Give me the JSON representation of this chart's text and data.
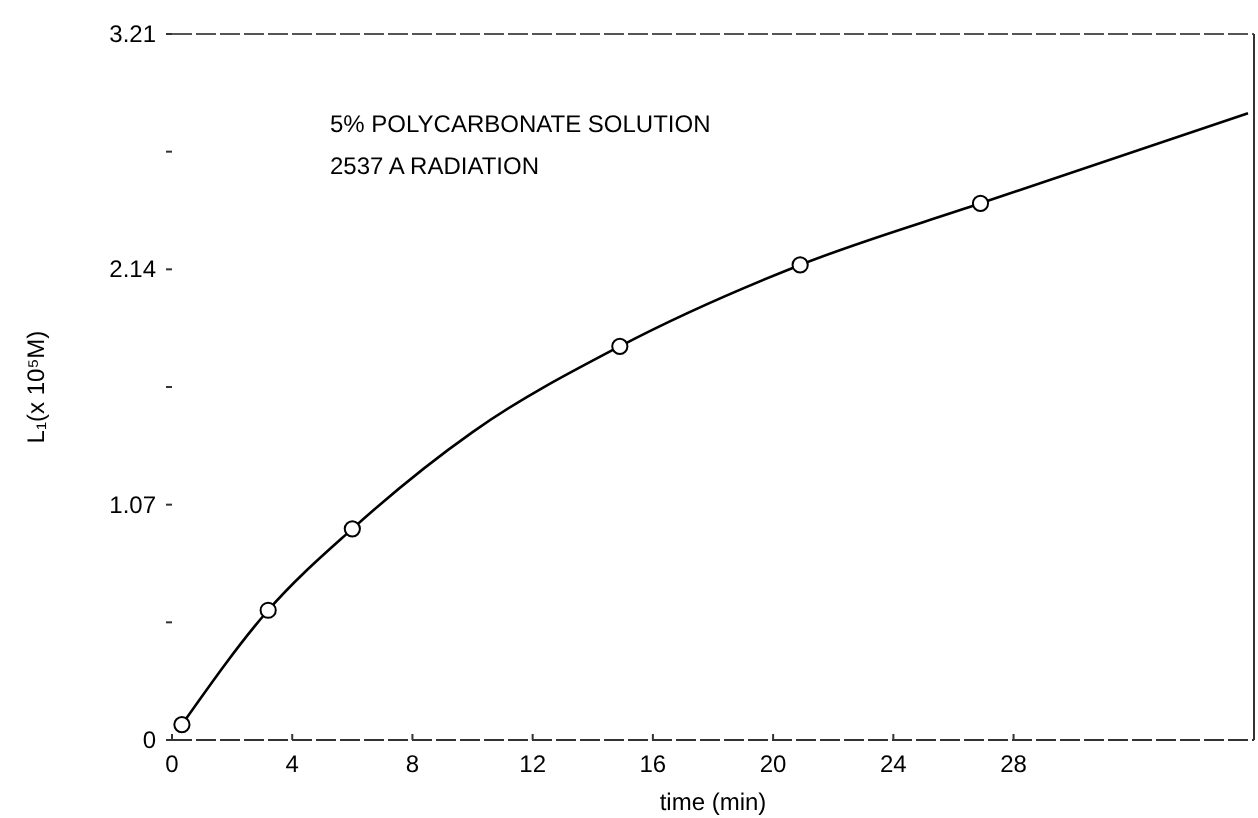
{
  "chart_data": {
    "type": "scatter",
    "xlabel": "time (min)",
    "ylabel": "L₁(x 10⁵M)",
    "annotations": [
      "5% POLYCARBONATE SOLUTION",
      "2537 A RADIATION"
    ],
    "series": [
      {
        "color": "#000000",
        "marker": "circle",
        "x": [
          0.33,
          3.2,
          6.0,
          14.9,
          20.9,
          26.9
        ],
        "values": [
          0.07,
          0.59,
          0.96,
          1.79,
          2.16,
          2.44
        ]
      },
      {
        "type": "line",
        "color": "#000000",
        "marker": "none",
        "x": [
          0.33,
          3.2,
          6.0,
          10,
          14.9,
          20.9,
          26.9,
          35.8
        ],
        "values": [
          0.07,
          0.59,
          0.96,
          1.4,
          1.79,
          2.16,
          2.44,
          2.85
        ]
      }
    ],
    "xlim": [
      0,
      36
    ],
    "xticks": [
      0,
      4,
      8,
      12,
      16,
      20,
      24,
      28
    ],
    "ylim": [
      0,
      3.21
    ],
    "yticks": [
      0,
      {
        "value": 0.535,
        "label": null
      },
      1.07,
      {
        "value": 1.605,
        "label": null
      },
      2.14,
      {
        "value": 2.675,
        "label": null
      },
      3.21
    ],
    "grid": false
  }
}
